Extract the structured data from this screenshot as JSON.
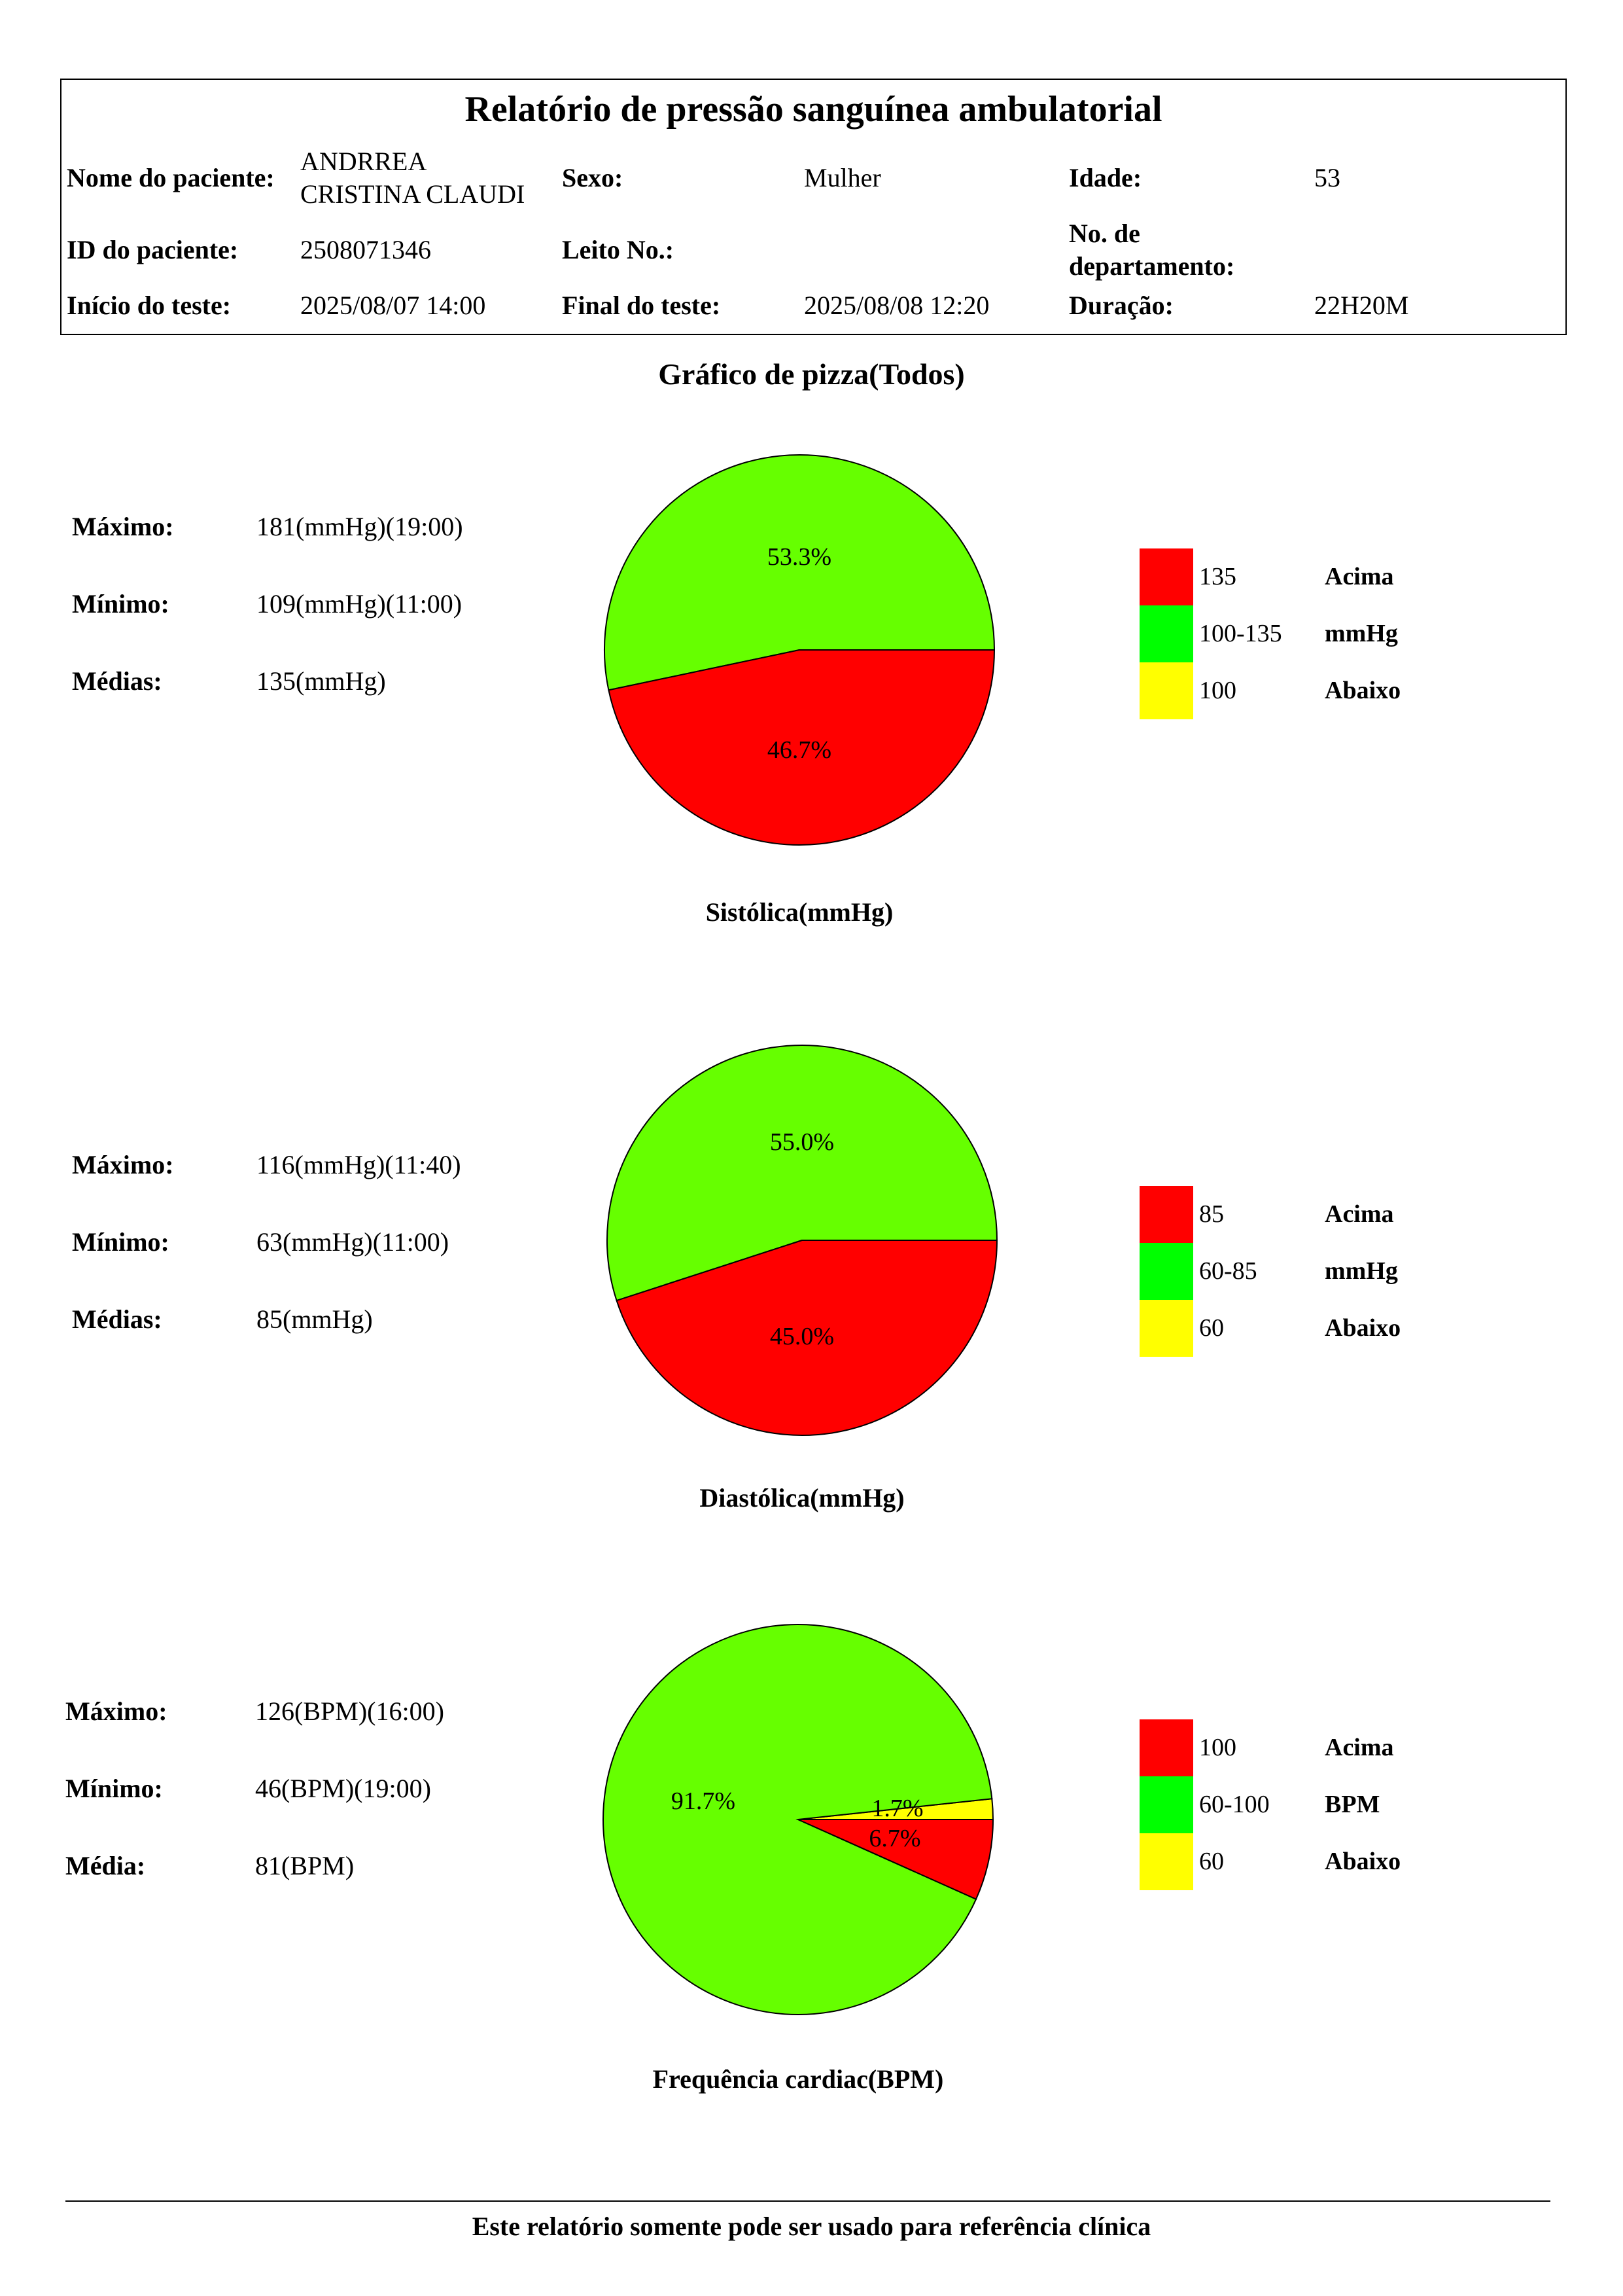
{
  "header": {
    "title": "Relatório de pressão sanguínea ambulatorial",
    "rows": [
      [
        {
          "label": "Nome do paciente:",
          "value": "ANDRREA\nCRISTINA CLAUDI"
        },
        {
          "label": "Sexo:",
          "value": "Mulher"
        },
        {
          "label": "Idade:",
          "value": "53"
        }
      ],
      [
        {
          "label": "ID do paciente:",
          "value": "2508071346"
        },
        {
          "label": "Leito No.:",
          "value": ""
        },
        {
          "label": "No. de\ndepartamento:",
          "value": ""
        }
      ],
      [
        {
          "label": "Início do teste:",
          "value": "2025/08/07 14:00"
        },
        {
          "label": "Final do teste:",
          "value": "2025/08/08 12:20"
        },
        {
          "label": "Duração:",
          "value": "22H20M"
        }
      ]
    ]
  },
  "page_title": "Gráfico de pizza(Todos)",
  "colors": {
    "high": "#ff0000",
    "normal_slice": "#66ff00",
    "normal_legend": "#00ff00",
    "low": "#ffff00"
  },
  "chart_data": [
    {
      "type": "pie",
      "title": "Sistólica(mmHg)",
      "stats": [
        {
          "label": "Máximo:",
          "value": "181(mmHg)(19:00)"
        },
        {
          "label": "Mínimo:",
          "value": "109(mmHg)(11:00)"
        },
        {
          "label": "Médias:",
          "value": "135(mmHg)"
        }
      ],
      "slices": [
        {
          "key": "normal",
          "value": 53.3,
          "label": "53.3%"
        },
        {
          "key": "high",
          "value": 46.7,
          "label": "46.7%"
        }
      ],
      "legend": [
        {
          "key": "high",
          "value": "135",
          "label": "Acima"
        },
        {
          "key": "normal",
          "value": "100-135",
          "label": "mmHg"
        },
        {
          "key": "low",
          "value": "100",
          "label": "Abaixo"
        }
      ]
    },
    {
      "type": "pie",
      "title": "Diastólica(mmHg)",
      "stats": [
        {
          "label": "Máximo:",
          "value": "116(mmHg)(11:40)"
        },
        {
          "label": "Mínimo:",
          "value": "63(mmHg)(11:00)"
        },
        {
          "label": "Médias:",
          "value": "85(mmHg)"
        }
      ],
      "slices": [
        {
          "key": "normal",
          "value": 55.0,
          "label": "55.0%"
        },
        {
          "key": "high",
          "value": 45.0,
          "label": "45.0%"
        }
      ],
      "legend": [
        {
          "key": "high",
          "value": "85",
          "label": "Acima"
        },
        {
          "key": "normal",
          "value": "60-85",
          "label": "mmHg"
        },
        {
          "key": "low",
          "value": "60",
          "label": "Abaixo"
        }
      ]
    },
    {
      "type": "pie",
      "title": "Frequência cardiac(BPM)",
      "stats": [
        {
          "label": "Máximo:",
          "value": "126(BPM)(16:00)"
        },
        {
          "label": "Mínimo:",
          "value": "46(BPM)(19:00)"
        },
        {
          "label": "Média:",
          "value": "81(BPM)"
        }
      ],
      "slices": [
        {
          "key": "low",
          "value": 1.7,
          "label": "1.7%"
        },
        {
          "key": "normal",
          "value": 91.7,
          "label": "91.7%"
        },
        {
          "key": "high",
          "value": 6.7,
          "label": "6.7%"
        }
      ],
      "legend": [
        {
          "key": "high",
          "value": "100",
          "label": "Acima"
        },
        {
          "key": "normal",
          "value": "60-100",
          "label": "BPM"
        },
        {
          "key": "low",
          "value": "60",
          "label": "Abaixo"
        }
      ]
    }
  ],
  "footer": "Este relatório somente pode ser usado para referência clínica"
}
